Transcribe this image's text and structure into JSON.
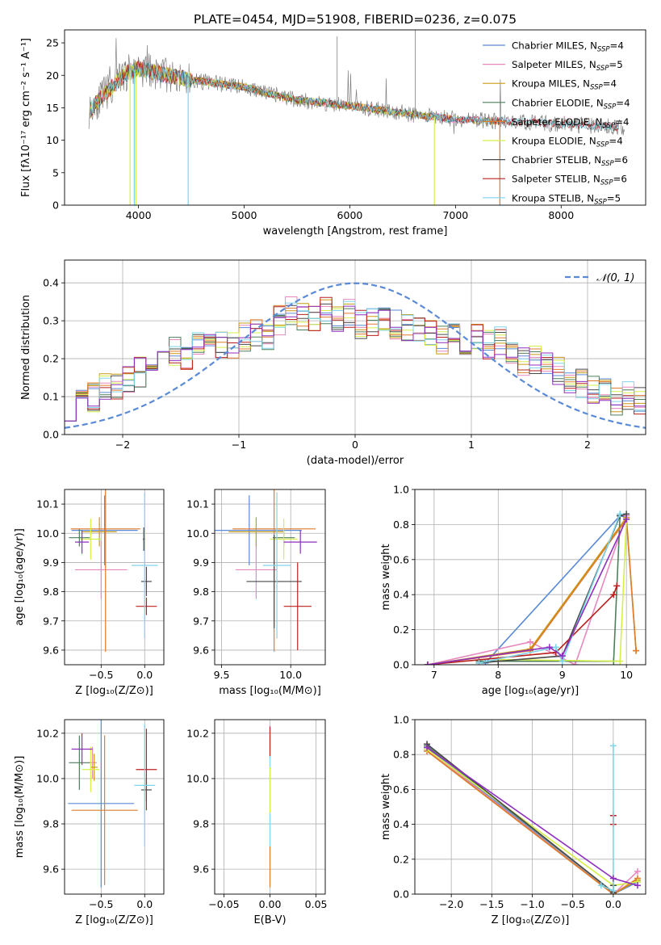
{
  "figure": {
    "colors": {
      "Chabrier MILES": "#5a8ad6",
      "Salpeter MILES": "#e888bf",
      "Kroupa MILES": "#c89a14",
      "Chabrier ELODIE": "#4e7f5c",
      "Salpeter ELODIE": "#e07b2c",
      "Kroupa ELODIE": "#d6ef48",
      "Chabrier STELIB": "#4a4a4a",
      "Salpeter STELIB": "#b8201e",
      "Kroupa STELIB": "#7fd4e8",
      "extra": "#8e2fbf"
    }
  },
  "chart_data": [
    {
      "type": "line",
      "title": "PLATE=0454, MJD=51908, FIBERID=0236, z=0.075",
      "xlabel": "wavelength [Angstrom, rest frame]",
      "ylabel": "Flux [fλ10⁻¹⁷ erg cm⁻² s⁻¹ A⁻¹]",
      "xlim": [
        3300,
        8800
      ],
      "ylim": [
        0,
        27
      ],
      "xticks": [
        4000,
        5000,
        6000,
        7000,
        8000
      ],
      "yticks": [
        0,
        5,
        10,
        15,
        20,
        25
      ],
      "grid": false,
      "legend_position": "top-right",
      "legend": [
        {
          "model": "Chabrier MILES",
          "label": "Chabrier MILES, N",
          "sub": "SSP",
          "tail": "=4"
        },
        {
          "model": "Salpeter MILES",
          "label": "Salpeter MILES, N",
          "sub": "SSP",
          "tail": "=5"
        },
        {
          "model": "Kroupa MILES",
          "label": "Kroupa MILES, N",
          "sub": "SSP",
          "tail": "=4"
        },
        {
          "model": "Chabrier ELODIE",
          "label": "Chabrier ELODIE, N",
          "sub": "SSP",
          "tail": "=4"
        },
        {
          "model": "Salpeter ELODIE",
          "label": "Salpeter ELODIE, N",
          "sub": "SSP",
          "tail": "=4"
        },
        {
          "model": "Kroupa ELODIE",
          "label": "Kroupa ELODIE, N",
          "sub": "SSP",
          "tail": "=4"
        },
        {
          "model": "Chabrier STELIB",
          "label": "Chabrier STELIB, N",
          "sub": "SSP",
          "tail": "=6"
        },
        {
          "model": "Salpeter STELIB",
          "label": "Salpeter STELIB, N",
          "sub": "SSP",
          "tail": "=6"
        },
        {
          "model": "Kroupa STELIB",
          "label": "Kroupa STELIB, N",
          "sub": "SSP",
          "tail": "=5"
        }
      ],
      "spectrum_continuum": {
        "x": [
          3530,
          3700,
          3900,
          4000,
          4200,
          4500,
          4800,
          5000,
          5200,
          5500,
          6000,
          6500,
          7000,
          7500,
          8000,
          8500
        ],
        "y": [
          14.5,
          17.5,
          20.5,
          21.0,
          20.3,
          19.3,
          18.6,
          18.2,
          17.3,
          16.2,
          15.3,
          14.2,
          13.2,
          12.9,
          12.5,
          12.0
        ]
      },
      "model_ranges": [
        {
          "model": "Chabrier MILES",
          "xmin": 3540,
          "xmax": 7410
        },
        {
          "model": "Salpeter MILES",
          "xmin": 3540,
          "xmax": 7410
        },
        {
          "model": "Kroupa MILES",
          "xmin": 3540,
          "xmax": 7410
        },
        {
          "model": "Chabrier ELODIE",
          "xmin": 3540,
          "xmax": 6800
        },
        {
          "model": "Salpeter ELODIE",
          "xmin": 3540,
          "xmax": 6800
        },
        {
          "model": "Kroupa ELODIE",
          "xmin": 3540,
          "xmax": 6800
        },
        {
          "model": "Chabrier STELIB",
          "xmin": 3540,
          "xmax": 8550
        },
        {
          "model": "Salpeter STELIB",
          "xmin": 3540,
          "xmax": 8550
        },
        {
          "model": "Kroupa STELIB",
          "xmin": 3540,
          "xmax": 8550
        }
      ]
    },
    {
      "type": "area",
      "xlabel": "(data-model)/error",
      "ylabel": "Normed distribution",
      "xlim": [
        -2.5,
        2.5
      ],
      "ylim": [
        0,
        0.46
      ],
      "xticks": [
        -2,
        -1,
        0,
        1,
        2
      ],
      "yticks": [
        0.0,
        0.1,
        0.2,
        0.3,
        0.4
      ],
      "grid": true,
      "legend_position": "top-right",
      "legend": [
        {
          "label": "𝒩(0, 1)",
          "style": "dashed"
        }
      ],
      "gaussian": {
        "mean": 0,
        "sigma": 1,
        "color": "#5a8ad6"
      },
      "bins": {
        "start": -2.5,
        "width": 0.1,
        "count": 50
      },
      "base_counts": [
        0.03,
        0.05,
        0.07,
        0.08,
        0.09,
        0.1,
        0.12,
        0.14,
        0.16,
        0.17,
        0.16,
        0.17,
        0.15,
        0.18,
        0.16,
        0.2,
        0.22,
        0.2,
        0.26,
        0.29,
        0.27,
        0.25,
        0.29,
        0.3,
        0.34,
        0.3,
        0.32,
        0.36,
        0.36,
        0.35,
        0.37,
        0.35,
        0.33,
        0.34,
        0.32,
        0.33,
        0.3,
        0.34,
        0.31,
        0.27,
        0.28,
        0.26,
        0.25,
        0.22,
        0.2,
        0.18,
        0.18,
        0.13,
        0.15,
        0.13
      ],
      "mirror_counts": [
        0.13,
        0.15,
        0.13,
        0.18,
        0.18,
        0.2,
        0.22,
        0.25,
        0.26,
        0.28,
        0.27,
        0.31,
        0.34,
        0.3,
        0.33,
        0.32,
        0.34,
        0.33,
        0.35,
        0.37,
        0.35,
        0.36,
        0.36,
        0.32,
        0.3,
        0.28,
        0.26,
        0.22,
        0.2,
        0.2,
        0.16,
        0.17,
        0.15,
        0.17,
        0.16,
        0.17,
        0.16,
        0.14,
        0.12,
        0.1,
        0.09,
        0.08,
        0.07,
        0.06,
        0.06,
        0.05,
        0.05,
        0.04,
        0.04,
        0.03
      ],
      "series_models": [
        "Chabrier MILES",
        "Salpeter MILES",
        "Kroupa MILES",
        "Chabrier ELODIE",
        "Salpeter ELODIE",
        "Kroupa ELODIE",
        "Chabrier STELIB",
        "Salpeter STELIB",
        "Kroupa STELIB",
        "extra"
      ]
    },
    {
      "type": "scatter",
      "xlabel": "Z [log₁₀(Z/Z⊙)]",
      "ylabel": "age  [log₁₀(age/yr)]",
      "xlim": [
        -0.92,
        0.22
      ],
      "ylim": [
        9.55,
        10.15
      ],
      "xticks": [
        -0.5,
        0.0
      ],
      "yticks": [
        9.6,
        9.7,
        9.8,
        9.9,
        10.0,
        10.1
      ],
      "grid": true,
      "errorbars": [
        {
          "model": "Chabrier MILES",
          "x": -0.46,
          "y": 10.01,
          "xerr": 0.38,
          "yerr": 0.12
        },
        {
          "model": "Salpeter MILES",
          "x": -0.5,
          "y": 9.875,
          "xerr": 0.3,
          "yerr": 0.1
        },
        {
          "model": "Kroupa MILES",
          "x": -0.52,
          "y": 10.005,
          "xerr": 0.2,
          "yerr": 0.05
        },
        {
          "model": "Chabrier ELODIE",
          "x": -0.75,
          "y": 9.985,
          "xerr": 0.12,
          "yerr": 0.03
        },
        {
          "model": "Salpeter ELODIE",
          "x": -0.45,
          "y": 10.015,
          "xerr": 0.4,
          "yerr": 0.42
        },
        {
          "model": "Kroupa ELODIE",
          "x": -0.62,
          "y": 9.98,
          "xerr": 0.12,
          "yerr": 0.07
        },
        {
          "model": "Chabrier STELIB",
          "x": 0.02,
          "y": 9.835,
          "xerr": 0.06,
          "yerr": 0.05
        },
        {
          "model": "Salpeter STELIB",
          "x": 0.02,
          "y": 9.75,
          "xerr": 0.12,
          "yerr": 0.03
        },
        {
          "model": "Kroupa STELIB",
          "x": 0.0,
          "y": 9.89,
          "xerr": 0.15,
          "yerr": 0.25
        },
        {
          "model": "extra",
          "x": -0.72,
          "y": 9.97,
          "xerr": 0.08,
          "yerr": 0.04
        },
        {
          "model": "Chabrier STELIB",
          "x": -0.01,
          "y": 9.98,
          "xerr": 0.01,
          "yerr": 0.04
        }
      ]
    },
    {
      "type": "scatter",
      "xlabel": "mass [log₁₀(M/M⊙)]",
      "ylabel": "",
      "xlim": [
        9.45,
        10.25
      ],
      "ylim": [
        9.55,
        10.15
      ],
      "xticks": [
        9.5,
        10.0
      ],
      "yticks": [
        9.6,
        9.7,
        9.8,
        9.9,
        10.0,
        10.1
      ],
      "grid": true,
      "errorbars": [
        {
          "model": "Chabrier MILES",
          "x": 9.7,
          "y": 10.01,
          "xerr": 0.38,
          "yerr": 0.12
        },
        {
          "model": "Salpeter MILES",
          "x": 9.75,
          "y": 9.875,
          "xerr": 0.15,
          "yerr": 0.1
        },
        {
          "model": "Kroupa MILES",
          "x": 9.75,
          "y": 10.005,
          "xerr": 0.2,
          "yerr": 0.05
        },
        {
          "model": "Chabrier ELODIE",
          "x": 9.95,
          "y": 9.985,
          "xerr": 0.08,
          "yerr": 0.03
        },
        {
          "model": "Salpeter ELODIE",
          "x": 9.88,
          "y": 10.015,
          "xerr": 0.3,
          "yerr": 0.42
        },
        {
          "model": "Kroupa ELODIE",
          "x": 9.95,
          "y": 9.98,
          "xerr": 0.1,
          "yerr": 0.07
        },
        {
          "model": "Chabrier STELIB",
          "x": 9.88,
          "y": 9.835,
          "xerr": 0.2,
          "yerr": 0.16
        },
        {
          "model": "Salpeter STELIB",
          "x": 10.05,
          "y": 9.75,
          "xerr": 0.1,
          "yerr": 0.15
        },
        {
          "model": "Kroupa STELIB",
          "x": 9.9,
          "y": 9.89,
          "xerr": 0.1,
          "yerr": 0.25
        },
        {
          "model": "extra",
          "x": 10.07,
          "y": 9.97,
          "xerr": 0.12,
          "yerr": 0.04
        }
      ]
    },
    {
      "type": "line",
      "xlabel": "age  [log₁₀(age/yr)]",
      "ylabel": "mass weight",
      "xlim": [
        6.7,
        10.3
      ],
      "ylim": [
        0,
        1.0
      ],
      "xticks": [
        7,
        8,
        9,
        10
      ],
      "yticks": [
        0.0,
        0.2,
        0.4,
        0.6,
        0.8,
        1.0
      ],
      "grid": true,
      "series": [
        {
          "model": "Chabrier MILES",
          "x": [
            7.8,
            9.9,
            10.0
          ],
          "y": [
            0.01,
            0.85,
            0.84
          ]
        },
        {
          "model": "Salpeter MILES",
          "x": [
            6.9,
            8.5,
            9.2,
            10.0
          ],
          "y": [
            0.0,
            0.13,
            0.0,
            0.85
          ]
        },
        {
          "model": "Kroupa MILES",
          "x": [
            6.9,
            8.5,
            10.0,
            10.15
          ],
          "y": [
            0.0,
            0.09,
            0.84,
            0.08
          ]
        },
        {
          "model": "Chabrier ELODIE",
          "x": [
            7.7,
            9.8,
            9.9
          ],
          "y": [
            0.02,
            0.02,
            0.85
          ]
        },
        {
          "model": "Salpeter ELODIE",
          "x": [
            6.9,
            8.5,
            10.0,
            10.15
          ],
          "y": [
            0.0,
            0.08,
            0.83,
            0.08
          ]
        },
        {
          "model": "Kroupa ELODIE",
          "x": [
            8.0,
            9.9,
            10.0
          ],
          "y": [
            0.03,
            0.02,
            0.83
          ]
        },
        {
          "model": "Chabrier STELIB",
          "x": [
            7.7,
            8.0,
            9.0,
            9.9,
            10.0
          ],
          "y": [
            0.01,
            0.02,
            0.05,
            0.85,
            0.86
          ]
        },
        {
          "model": "Salpeter STELIB",
          "x": [
            6.9,
            8.9,
            9.8,
            9.85
          ],
          "y": [
            0.0,
            0.07,
            0.4,
            0.45
          ]
        },
        {
          "model": "Kroupa STELIB",
          "x": [
            7.7,
            8.9,
            9.0,
            9.9
          ],
          "y": [
            0.01,
            0.1,
            0.02,
            0.86
          ]
        },
        {
          "model": "extra",
          "x": [
            6.9,
            8.8,
            9.0,
            10.0
          ],
          "y": [
            0.0,
            0.1,
            0.05,
            0.83
          ]
        }
      ]
    },
    {
      "type": "scatter",
      "xlabel": "Z [log₁₀(Z/Z⊙)]",
      "ylabel": "mass [log₁₀(M/M⊙)]",
      "xlim": [
        -0.92,
        0.22
      ],
      "ylim": [
        9.49,
        10.26
      ],
      "xticks": [
        -0.5,
        0.0
      ],
      "yticks": [
        9.6,
        9.8,
        10.0,
        10.2
      ],
      "grid": true,
      "errorbars": [
        {
          "model": "Chabrier MILES",
          "x": -0.5,
          "y": 9.89,
          "xerr": 0.38,
          "yerr": 0.37
        },
        {
          "model": "Salpeter MILES",
          "x": -0.6,
          "y": 10.07,
          "xerr": 0.05,
          "yerr": 0.07
        },
        {
          "model": "Kroupa MILES",
          "x": -0.58,
          "y": 10.05,
          "xerr": 0.04,
          "yerr": 0.06
        },
        {
          "model": "Chabrier ELODIE",
          "x": -0.75,
          "y": 10.07,
          "xerr": 0.12,
          "yerr": 0.12
        },
        {
          "model": "Salpeter ELODIE",
          "x": -0.46,
          "y": 9.86,
          "xerr": 0.38,
          "yerr": 0.33
        },
        {
          "model": "Kroupa ELODIE",
          "x": -0.62,
          "y": 10.04,
          "xerr": 0.1,
          "yerr": 0.1
        },
        {
          "model": "Chabrier STELIB",
          "x": 0.02,
          "y": 9.95,
          "xerr": 0.06,
          "yerr": 0.05
        },
        {
          "model": "Salpeter STELIB",
          "x": 0.02,
          "y": 10.04,
          "xerr": 0.12,
          "yerr": 0.18
        },
        {
          "model": "Kroupa STELIB",
          "x": 0.0,
          "y": 9.97,
          "xerr": 0.12,
          "yerr": 0.27
        },
        {
          "model": "extra",
          "x": -0.72,
          "y": 10.13,
          "xerr": 0.12,
          "yerr": 0.07
        }
      ]
    },
    {
      "type": "scatter",
      "xlabel": "E(B-V)",
      "ylabel": "",
      "xlim": [
        -0.06,
        0.06
      ],
      "ylim": [
        9.49,
        10.26
      ],
      "xticks": [
        -0.05,
        0.0,
        0.05
      ],
      "yticks": [
        9.6,
        9.8,
        10.0,
        10.2
      ],
      "grid": true,
      "errorbars": [
        {
          "model": "Salpeter ELODIE",
          "x": 0.0,
          "y": 9.61,
          "xerr": 0.0,
          "yerr": 0.09
        },
        {
          "model": "Salpeter STELIB",
          "x": 0.0,
          "y": 10.16,
          "xerr": 0.0,
          "yerr": 0.07
        },
        {
          "model": "Kroupa STELIB",
          "x": 0.0,
          "y": 9.9,
          "xerr": 0.0,
          "yerr": 0.2
        },
        {
          "model": "Kroupa ELODIE",
          "x": 0.0,
          "y": 9.95,
          "xerr": 0.0,
          "yerr": 0.1
        }
      ]
    },
    {
      "type": "line",
      "xlabel": "Z [log₁₀(Z/Z⊙)]",
      "ylabel": "mass weight",
      "xlim": [
        -2.45,
        0.4
      ],
      "ylim": [
        0,
        1.0
      ],
      "xticks": [
        -2.0,
        -1.5,
        -1.0,
        -0.5,
        0.0
      ],
      "yticks": [
        0.0,
        0.2,
        0.4,
        0.6,
        0.8,
        1.0
      ],
      "grid": true,
      "series": [
        {
          "model": "Chabrier MILES",
          "x": [
            -2.3,
            0.0,
            0.3
          ],
          "y": [
            0.84,
            0.0,
            0.07
          ]
        },
        {
          "model": "Salpeter MILES",
          "x": [
            -2.3,
            0.0,
            0.3
          ],
          "y": [
            0.83,
            0.0,
            0.13
          ]
        },
        {
          "model": "Kroupa MILES",
          "x": [
            -2.3,
            0.0,
            0.3
          ],
          "y": [
            0.82,
            0.0,
            0.08
          ]
        },
        {
          "model": "Chabrier ELODIE",
          "x": [
            -2.3,
            0.0
          ],
          "y": [
            0.85,
            0.01
          ]
        },
        {
          "model": "Salpeter ELODIE",
          "x": [
            -2.3,
            0.0,
            0.3
          ],
          "y": [
            0.82,
            0.0,
            0.09
          ]
        },
        {
          "model": "Kroupa ELODIE",
          "x": [
            -2.3,
            0.0,
            0.3
          ],
          "y": [
            0.83,
            0.05,
            0.07
          ]
        },
        {
          "model": "Chabrier STELIB",
          "x": [
            -2.3,
            0.0,
            0.0
          ],
          "y": [
            0.86,
            0.01,
            0.05
          ]
        },
        {
          "model": "Salpeter STELIB",
          "x": [
            0.0,
            0.0
          ],
          "y": [
            0.4,
            0.45
          ]
        },
        {
          "model": "Kroupa STELIB",
          "x": [
            -0.15,
            0.0,
            0.0
          ],
          "y": [
            0.05,
            0.02,
            0.85
          ]
        },
        {
          "model": "extra",
          "x": [
            -2.3,
            0.0,
            0.3
          ],
          "y": [
            0.84,
            0.09,
            0.05
          ]
        }
      ]
    }
  ]
}
